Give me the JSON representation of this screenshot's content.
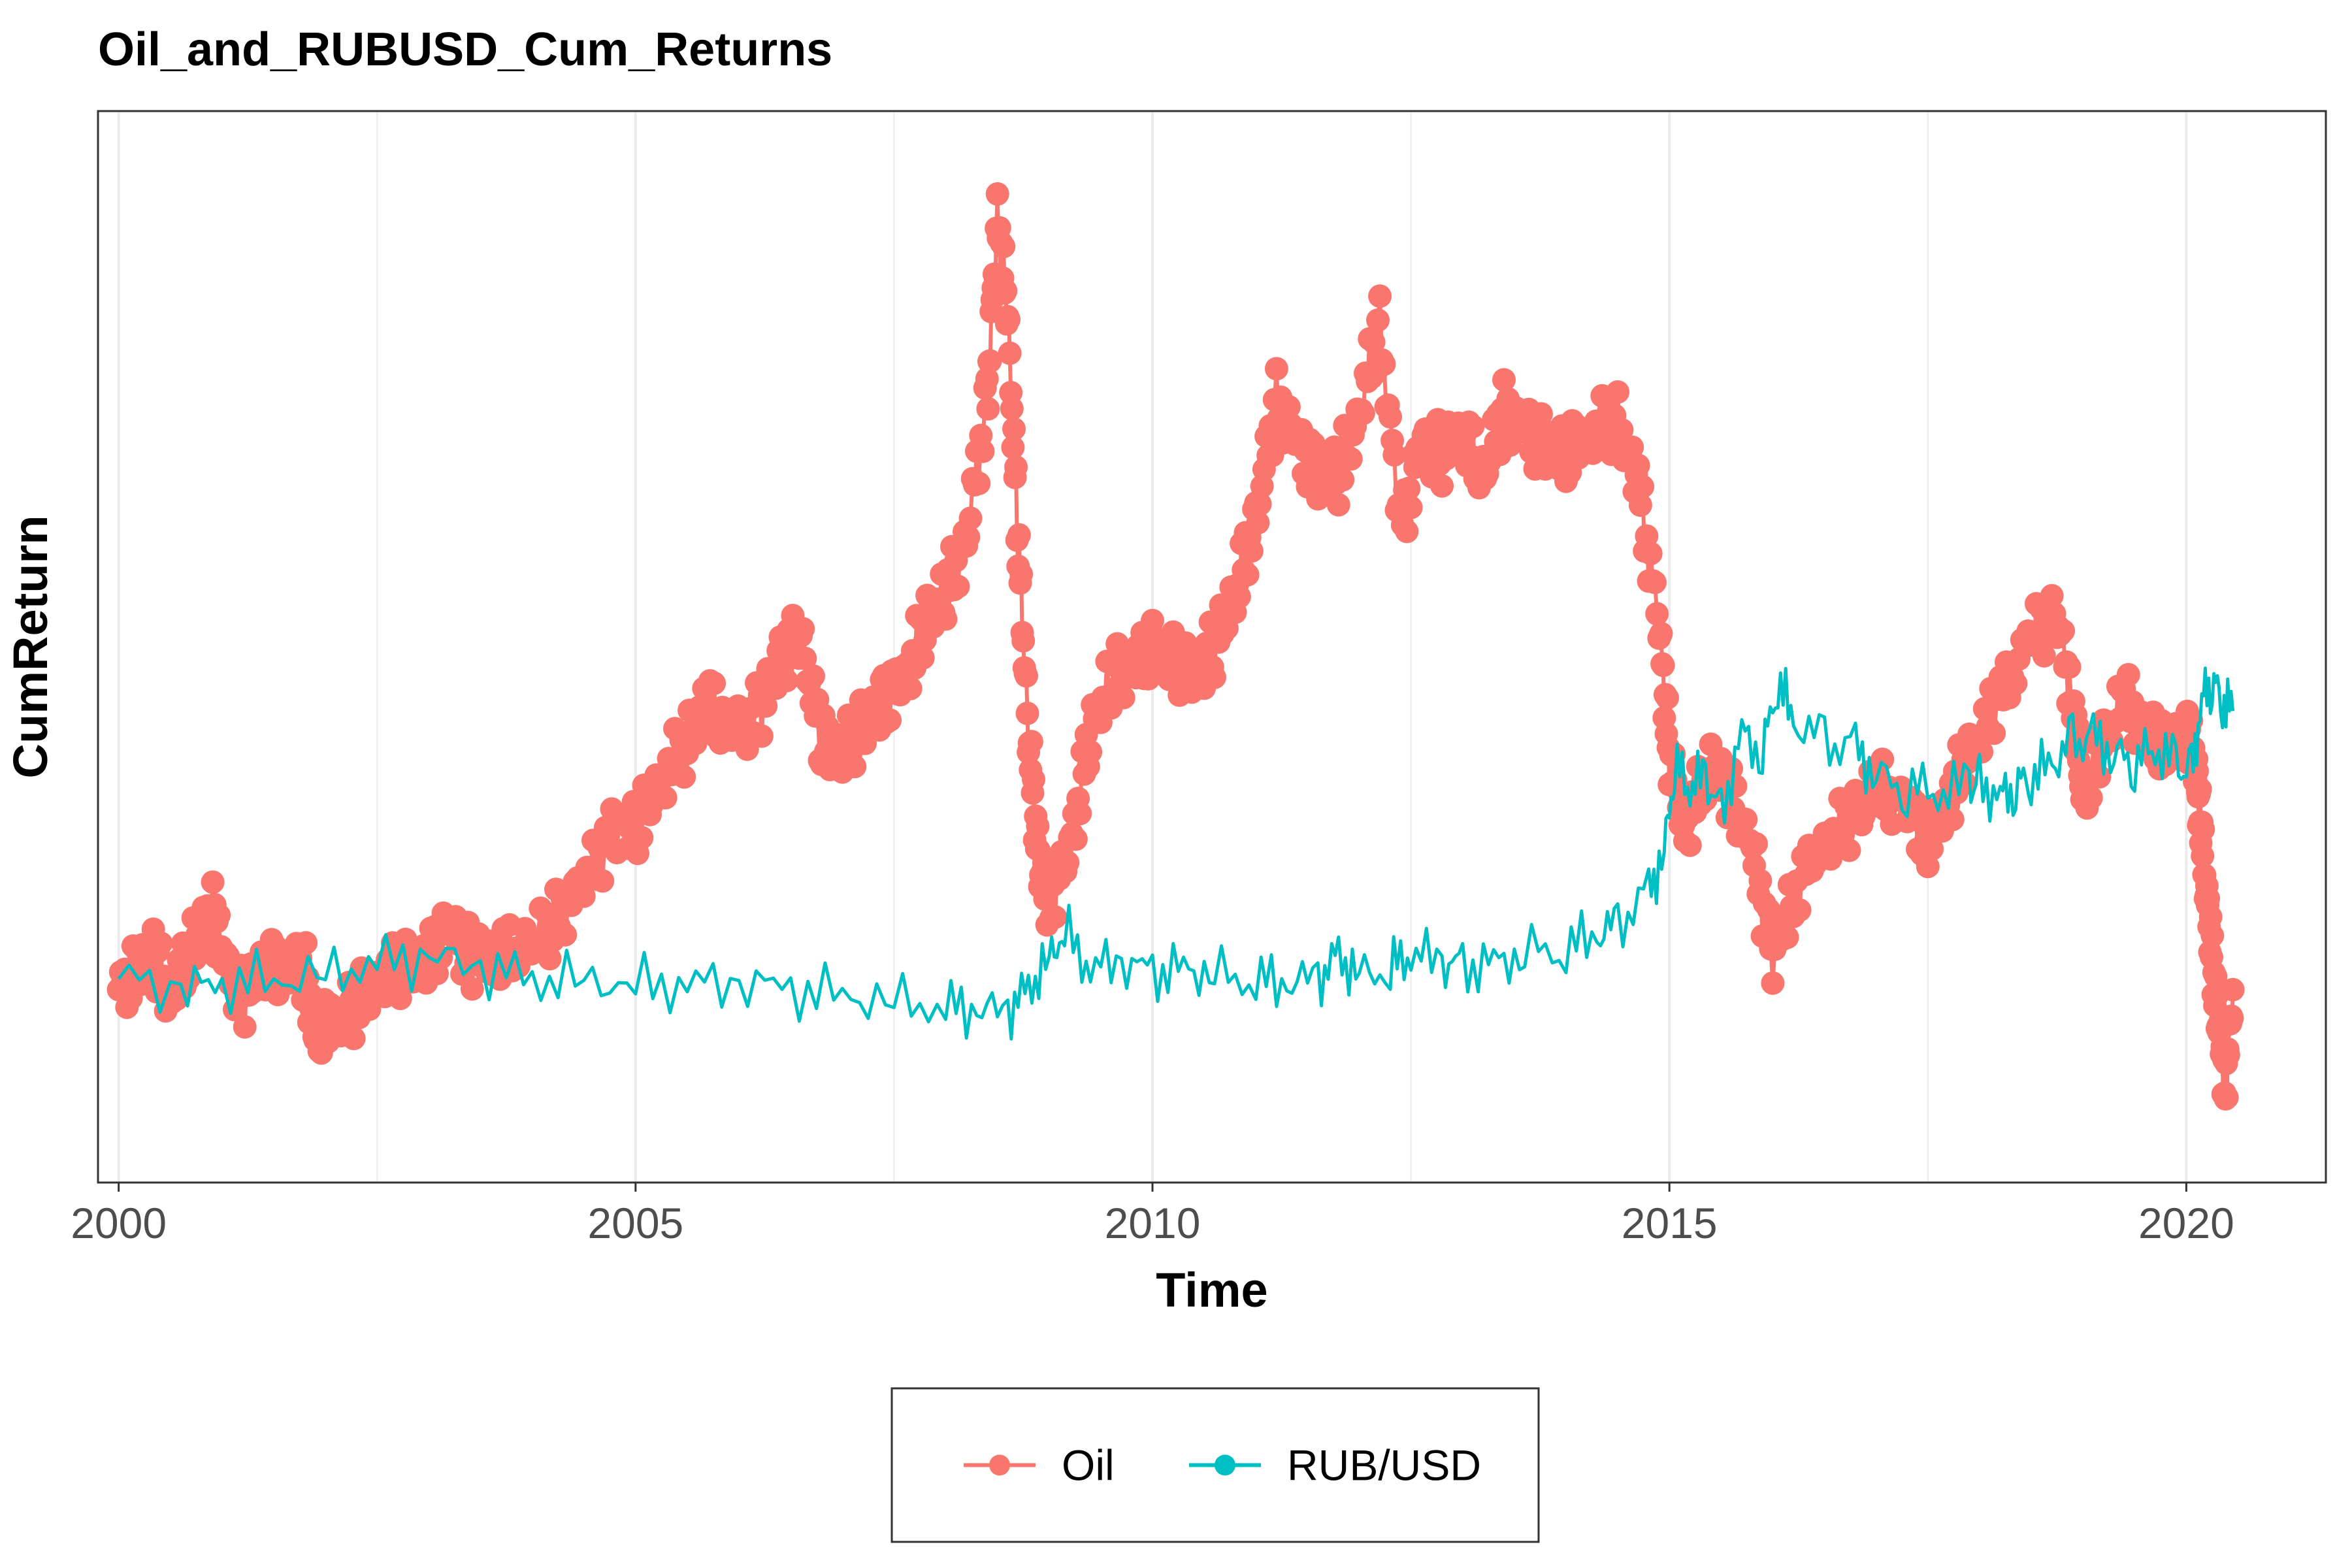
{
  "chart_data": {
    "type": "line",
    "title": "Oil_and_RUBUSD_Cum_Returns",
    "xlabel": "Time",
    "ylabel": "CumReturn",
    "xlim": [
      1999.8,
      2021.35
    ],
    "ylim": [
      0,
      1
    ],
    "x_ticks": [
      2000,
      2005,
      2010,
      2015,
      2020
    ],
    "x_tick_labels": [
      "2000",
      "2005",
      "2010",
      "2015",
      "2020"
    ],
    "y_tick_labels_shown": false,
    "grid": "vertical",
    "legend_position": "bottom",
    "series": [
      {
        "name": "Oil",
        "style": "points+line",
        "color": "#F8766D",
        "points": [
          [
            2000.0,
            0.18
          ],
          [
            2000.2,
            0.2
          ],
          [
            2000.35,
            0.21
          ],
          [
            2000.5,
            0.17
          ],
          [
            2000.7,
            0.22
          ],
          [
            2000.9,
            0.26
          ],
          [
            2001.0,
            0.21
          ],
          [
            2001.2,
            0.17
          ],
          [
            2001.4,
            0.2
          ],
          [
            2001.6,
            0.2
          ],
          [
            2001.8,
            0.2
          ],
          [
            2001.9,
            0.14
          ],
          [
            2002.0,
            0.15
          ],
          [
            2002.25,
            0.16
          ],
          [
            2002.5,
            0.19
          ],
          [
            2002.75,
            0.2
          ],
          [
            2003.0,
            0.21
          ],
          [
            2003.2,
            0.24
          ],
          [
            2003.4,
            0.21
          ],
          [
            2003.6,
            0.21
          ],
          [
            2003.9,
            0.22
          ],
          [
            2004.2,
            0.24
          ],
          [
            2004.5,
            0.28
          ],
          [
            2004.8,
            0.33
          ],
          [
            2005.0,
            0.33
          ],
          [
            2005.2,
            0.37
          ],
          [
            2005.5,
            0.41
          ],
          [
            2005.7,
            0.45
          ],
          [
            2005.9,
            0.42
          ],
          [
            2006.2,
            0.44
          ],
          [
            2006.4,
            0.49
          ],
          [
            2006.6,
            0.51
          ],
          [
            2006.8,
            0.41
          ],
          [
            2007.0,
            0.4
          ],
          [
            2007.2,
            0.43
          ],
          [
            2007.4,
            0.45
          ],
          [
            2007.6,
            0.47
          ],
          [
            2007.8,
            0.52
          ],
          [
            2008.0,
            0.55
          ],
          [
            2008.2,
            0.6
          ],
          [
            2008.4,
            0.73
          ],
          [
            2008.5,
            0.9
          ],
          [
            2008.6,
            0.81
          ],
          [
            2008.7,
            0.6
          ],
          [
            2008.8,
            0.42
          ],
          [
            2008.9,
            0.3
          ],
          [
            2009.0,
            0.26
          ],
          [
            2009.2,
            0.31
          ],
          [
            2009.4,
            0.42
          ],
          [
            2009.6,
            0.47
          ],
          [
            2009.8,
            0.48
          ],
          [
            2010.0,
            0.5
          ],
          [
            2010.2,
            0.49
          ],
          [
            2010.4,
            0.47
          ],
          [
            2010.6,
            0.5
          ],
          [
            2010.8,
            0.55
          ],
          [
            2011.0,
            0.62
          ],
          [
            2011.2,
            0.73
          ],
          [
            2011.4,
            0.69
          ],
          [
            2011.6,
            0.66
          ],
          [
            2011.8,
            0.66
          ],
          [
            2012.0,
            0.72
          ],
          [
            2012.2,
            0.8
          ],
          [
            2012.4,
            0.61
          ],
          [
            2012.6,
            0.69
          ],
          [
            2012.8,
            0.68
          ],
          [
            2013.0,
            0.7
          ],
          [
            2013.2,
            0.66
          ],
          [
            2013.4,
            0.72
          ],
          [
            2013.6,
            0.7
          ],
          [
            2013.8,
            0.69
          ],
          [
            2014.0,
            0.68
          ],
          [
            2014.2,
            0.7
          ],
          [
            2014.5,
            0.71
          ],
          [
            2014.7,
            0.65
          ],
          [
            2014.9,
            0.52
          ],
          [
            2015.0,
            0.4
          ],
          [
            2015.15,
            0.33
          ],
          [
            2015.4,
            0.39
          ],
          [
            2015.6,
            0.36
          ],
          [
            2015.8,
            0.31
          ],
          [
            2016.0,
            0.21
          ],
          [
            2016.2,
            0.27
          ],
          [
            2016.5,
            0.32
          ],
          [
            2016.8,
            0.34
          ],
          [
            2017.0,
            0.37
          ],
          [
            2017.3,
            0.35
          ],
          [
            2017.5,
            0.32
          ],
          [
            2017.7,
            0.36
          ],
          [
            2017.9,
            0.4
          ],
          [
            2018.2,
            0.45
          ],
          [
            2018.5,
            0.51
          ],
          [
            2018.75,
            0.53
          ],
          [
            2018.9,
            0.45
          ],
          [
            2019.0,
            0.36
          ],
          [
            2019.2,
            0.41
          ],
          [
            2019.4,
            0.45
          ],
          [
            2019.6,
            0.42
          ],
          [
            2019.8,
            0.41
          ],
          [
            2020.0,
            0.43
          ],
          [
            2020.1,
            0.38
          ],
          [
            2020.15,
            0.32
          ],
          [
            2020.22,
            0.24
          ],
          [
            2020.3,
            0.16
          ],
          [
            2020.38,
            0.09
          ],
          [
            2020.45,
            0.18
          ]
        ]
      },
      {
        "name": "RUB/USD",
        "style": "line",
        "color": "#00BFC4",
        "points": [
          [
            2000.0,
            0.19
          ],
          [
            2000.6,
            0.18
          ],
          [
            2001.0,
            0.185
          ],
          [
            2001.5,
            0.19
          ],
          [
            2002.0,
            0.195
          ],
          [
            2002.5,
            0.205
          ],
          [
            2003.0,
            0.21
          ],
          [
            2003.5,
            0.2
          ],
          [
            2004.0,
            0.19
          ],
          [
            2004.5,
            0.19
          ],
          [
            2005.0,
            0.185
          ],
          [
            2005.5,
            0.185
          ],
          [
            2006.0,
            0.185
          ],
          [
            2006.5,
            0.18
          ],
          [
            2007.0,
            0.175
          ],
          [
            2007.5,
            0.17
          ],
          [
            2008.0,
            0.165
          ],
          [
            2008.3,
            0.16
          ],
          [
            2008.6,
            0.16
          ],
          [
            2008.8,
            0.18
          ],
          [
            2009.0,
            0.21
          ],
          [
            2009.15,
            0.235
          ],
          [
            2009.4,
            0.2
          ],
          [
            2009.7,
            0.205
          ],
          [
            2010.0,
            0.195
          ],
          [
            2010.3,
            0.2
          ],
          [
            2010.6,
            0.195
          ],
          [
            2011.0,
            0.19
          ],
          [
            2011.3,
            0.185
          ],
          [
            2011.6,
            0.19
          ],
          [
            2011.8,
            0.21
          ],
          [
            2012.0,
            0.195
          ],
          [
            2012.3,
            0.2
          ],
          [
            2012.5,
            0.215
          ],
          [
            2012.8,
            0.205
          ],
          [
            2013.0,
            0.2
          ],
          [
            2013.3,
            0.205
          ],
          [
            2013.6,
            0.215
          ],
          [
            2014.0,
            0.22
          ],
          [
            2014.3,
            0.23
          ],
          [
            2014.5,
            0.24
          ],
          [
            2014.8,
            0.27
          ],
          [
            2014.95,
            0.31
          ],
          [
            2015.05,
            0.39
          ],
          [
            2015.2,
            0.37
          ],
          [
            2015.35,
            0.38
          ],
          [
            2015.5,
            0.34
          ],
          [
            2015.7,
            0.42
          ],
          [
            2015.9,
            0.4
          ],
          [
            2016.05,
            0.47
          ],
          [
            2016.2,
            0.43
          ],
          [
            2016.5,
            0.41
          ],
          [
            2016.8,
            0.405
          ],
          [
            2017.0,
            0.38
          ],
          [
            2017.3,
            0.37
          ],
          [
            2017.6,
            0.365
          ],
          [
            2017.9,
            0.37
          ],
          [
            2018.0,
            0.37
          ],
          [
            2018.2,
            0.36
          ],
          [
            2018.35,
            0.37
          ],
          [
            2018.5,
            0.38
          ],
          [
            2018.7,
            0.39
          ],
          [
            2018.9,
            0.41
          ],
          [
            2019.1,
            0.415
          ],
          [
            2019.3,
            0.4
          ],
          [
            2019.5,
            0.395
          ],
          [
            2019.7,
            0.405
          ],
          [
            2019.9,
            0.39
          ],
          [
            2020.05,
            0.38
          ],
          [
            2020.15,
            0.45
          ],
          [
            2020.25,
            0.47
          ],
          [
            2020.35,
            0.45
          ],
          [
            2020.45,
            0.44
          ]
        ]
      }
    ]
  },
  "legend": {
    "items": [
      {
        "label": "Oil",
        "color": "#F8766D"
      },
      {
        "label": "RUB/USD",
        "color": "#00BFC4"
      }
    ]
  }
}
